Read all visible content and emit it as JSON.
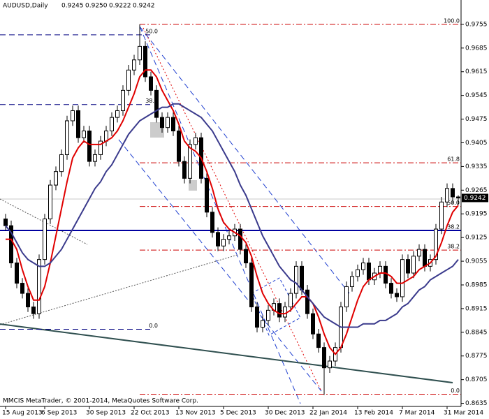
{
  "chart_data": {
    "type": "candlestick",
    "title": "AUDUSD,Daily",
    "ohlc_labels": [
      "0.9245",
      "0.9250",
      "0.9222",
      "0.9242"
    ],
    "footer": "MMCIS MetaTrader, © 2001-2014, MetaQuotes Software Corp.",
    "ylim": [
      0.863,
      0.9827
    ],
    "yticks": [
      0.9755,
      0.9685,
      0.9615,
      0.9545,
      0.9475,
      0.9405,
      0.9335,
      0.9265,
      0.9195,
      0.9125,
      0.9055,
      0.8985,
      0.8915,
      0.8845,
      0.8775,
      0.8705,
      0.8635
    ],
    "xticks": [
      {
        "value": 0,
        "label": "15 Aug 2013"
      },
      {
        "value": 7,
        "label": "6 Sep 2013"
      },
      {
        "value": 15,
        "label": "30 Sep 2013"
      },
      {
        "value": 23,
        "label": "22 Oct 2013"
      },
      {
        "value": 31,
        "label": "13 Nov 2013"
      },
      {
        "value": 39,
        "label": "5 Dec 2013"
      },
      {
        "value": 47,
        "label": "30 Dec 2013"
      },
      {
        "value": 55,
        "label": "22 Jan 2014"
      },
      {
        "value": 63,
        "label": "13 Feb 2014"
      },
      {
        "value": 71,
        "label": "7 Mar 2014"
      },
      {
        "value": 79,
        "label": "31 Mar 2014"
      }
    ],
    "candles": [
      [
        0.918,
        0.9195,
        0.9145,
        0.916
      ],
      [
        0.916,
        0.9175,
        0.9035,
        0.905
      ],
      [
        0.905,
        0.9065,
        0.8975,
        0.899
      ],
      [
        0.899,
        0.9005,
        0.8945,
        0.896
      ],
      [
        0.896,
        0.8975,
        0.8905,
        0.892
      ],
      [
        0.892,
        0.8935,
        0.8885,
        0.89
      ],
      [
        0.89,
        0.9075,
        0.8885,
        0.906
      ],
      [
        0.906,
        0.9195,
        0.9045,
        0.918
      ],
      [
        0.918,
        0.9295,
        0.9165,
        0.928
      ],
      [
        0.928,
        0.9335,
        0.9265,
        0.932
      ],
      [
        0.932,
        0.9385,
        0.9305,
        0.937
      ],
      [
        0.937,
        0.9485,
        0.9355,
        0.947
      ],
      [
        0.947,
        0.9515,
        0.9455,
        0.95
      ],
      [
        0.95,
        0.9515,
        0.9405,
        0.942
      ],
      [
        0.942,
        0.9455,
        0.9405,
        0.944
      ],
      [
        0.944,
        0.9455,
        0.9335,
        0.935
      ],
      [
        0.935,
        0.9385,
        0.9335,
        0.937
      ],
      [
        0.937,
        0.9425,
        0.9355,
        0.941
      ],
      [
        0.941,
        0.9455,
        0.9395,
        0.944
      ],
      [
        0.944,
        0.9495,
        0.9425,
        0.948
      ],
      [
        0.948,
        0.9515,
        0.9465,
        0.95
      ],
      [
        0.95,
        0.9575,
        0.9485,
        0.956
      ],
      [
        0.956,
        0.9635,
        0.9545,
        0.962
      ],
      [
        0.962,
        0.9665,
        0.9605,
        0.965
      ],
      [
        0.965,
        0.9755,
        0.9635,
        0.969
      ],
      [
        0.969,
        0.9705,
        0.9585,
        0.96
      ],
      [
        0.96,
        0.9615,
        0.9545,
        0.956
      ],
      [
        0.956,
        0.9575,
        0.9465,
        0.948
      ],
      [
        0.948,
        0.9495,
        0.9435,
        0.945
      ],
      [
        0.945,
        0.9495,
        0.9435,
        0.948
      ],
      [
        0.948,
        0.9495,
        0.9425,
        0.944
      ],
      [
        0.944,
        0.9455,
        0.9335,
        0.935
      ],
      [
        0.935,
        0.9365,
        0.9285,
        0.93
      ],
      [
        0.93,
        0.9415,
        0.9285,
        0.94
      ],
      [
        0.94,
        0.9435,
        0.9385,
        0.942
      ],
      [
        0.942,
        0.9435,
        0.9285,
        0.93
      ],
      [
        0.93,
        0.9315,
        0.9185,
        0.92
      ],
      [
        0.92,
        0.9215,
        0.9125,
        0.914
      ],
      [
        0.914,
        0.9155,
        0.9085,
        0.91
      ],
      [
        0.91,
        0.9135,
        0.9085,
        0.912
      ],
      [
        0.912,
        0.9145,
        0.9105,
        0.913
      ],
      [
        0.913,
        0.9165,
        0.9115,
        0.915
      ],
      [
        0.915,
        0.9165,
        0.9075,
        0.909
      ],
      [
        0.909,
        0.9105,
        0.9035,
        0.905
      ],
      [
        0.905,
        0.9065,
        0.8905,
        0.892
      ],
      [
        0.892,
        0.8935,
        0.8845,
        0.886
      ],
      [
        0.886,
        0.8895,
        0.8845,
        0.888
      ],
      [
        0.888,
        0.8925,
        0.8865,
        0.891
      ],
      [
        0.891,
        0.8945,
        0.8895,
        0.893
      ],
      [
        0.893,
        0.8945,
        0.8875,
        0.889
      ],
      [
        0.889,
        0.8935,
        0.8875,
        0.892
      ],
      [
        0.892,
        0.8975,
        0.8905,
        0.896
      ],
      [
        0.896,
        0.9055,
        0.8945,
        0.904
      ],
      [
        0.904,
        0.9055,
        0.8955,
        0.897
      ],
      [
        0.897,
        0.8985,
        0.8885,
        0.89
      ],
      [
        0.89,
        0.8915,
        0.8825,
        0.884
      ],
      [
        0.884,
        0.8855,
        0.8785,
        0.88
      ],
      [
        0.88,
        0.8815,
        0.866,
        0.874
      ],
      [
        0.874,
        0.8775,
        0.8725,
        0.876
      ],
      [
        0.876,
        0.8815,
        0.8745,
        0.88
      ],
      [
        0.88,
        0.8935,
        0.8785,
        0.892
      ],
      [
        0.892,
        0.8995,
        0.8905,
        0.898
      ],
      [
        0.898,
        0.9025,
        0.8965,
        0.901
      ],
      [
        0.901,
        0.9045,
        0.8995,
        0.903
      ],
      [
        0.903,
        0.9065,
        0.9015,
        0.905
      ],
      [
        0.905,
        0.9065,
        0.8985,
        0.9
      ],
      [
        0.9,
        0.9035,
        0.8985,
        0.902
      ],
      [
        0.902,
        0.9055,
        0.9005,
        0.904
      ],
      [
        0.904,
        0.9055,
        0.8975,
        0.899
      ],
      [
        0.899,
        0.9005,
        0.8945,
        0.896
      ],
      [
        0.896,
        0.8975,
        0.8935,
        0.895
      ],
      [
        0.895,
        0.9075,
        0.8935,
        0.906
      ],
      [
        0.906,
        0.9075,
        0.9005,
        0.902
      ],
      [
        0.902,
        0.9085,
        0.9005,
        0.907
      ],
      [
        0.907,
        0.9105,
        0.9055,
        0.909
      ],
      [
        0.909,
        0.9105,
        0.9025,
        0.904
      ],
      [
        0.904,
        0.9075,
        0.9025,
        0.906
      ],
      [
        0.906,
        0.9165,
        0.9045,
        0.915
      ],
      [
        0.915,
        0.9245,
        0.9135,
        0.923
      ],
      [
        0.923,
        0.9285,
        0.9215,
        0.927
      ],
      [
        0.927,
        0.9285,
        0.9225,
        0.9245
      ],
      [
        0.9245,
        0.925,
        0.9222,
        0.9242
      ]
    ],
    "series": [
      {
        "color": "#e00000",
        "values": [
          0.912,
          0.912,
          0.909,
          0.903,
          0.898,
          0.894,
          0.894,
          0.898,
          0.905,
          0.913,
          0.921,
          0.929,
          0.936,
          0.939,
          0.941,
          0.94,
          0.94,
          0.94,
          0.941,
          0.942,
          0.944,
          0.947,
          0.951,
          0.955,
          0.96,
          0.962,
          0.962,
          0.96,
          0.956,
          0.953,
          0.95,
          0.946,
          0.941,
          0.939,
          0.938,
          0.936,
          0.932,
          0.927,
          0.921,
          0.917,
          0.915,
          0.914,
          0.913,
          0.911,
          0.907,
          0.901,
          0.896,
          0.893,
          0.891,
          0.89,
          0.89,
          0.891,
          0.893,
          0.895,
          0.895,
          0.893,
          0.889,
          0.884,
          0.88,
          0.878,
          0.88,
          0.884,
          0.889,
          0.894,
          0.898,
          0.9,
          0.901,
          0.902,
          0.902,
          0.901,
          0.899,
          0.899,
          0.9,
          0.901,
          0.903,
          0.904,
          0.905,
          0.907,
          0.911,
          0.916,
          0.92,
          0.922
        ]
      },
      {
        "color": "#3a3a8c",
        "values": [
          0.916,
          0.914,
          0.911,
          0.908,
          0.906,
          0.905,
          0.904,
          0.904,
          0.905,
          0.907,
          0.909,
          0.912,
          0.915,
          0.918,
          0.921,
          0.924,
          0.927,
          0.929,
          0.932,
          0.934,
          0.937,
          0.94,
          0.943,
          0.945,
          0.947,
          0.948,
          0.949,
          0.95,
          0.951,
          0.951,
          0.952,
          0.952,
          0.951,
          0.95,
          0.949,
          0.948,
          0.946,
          0.944,
          0.941,
          0.938,
          0.935,
          0.932,
          0.928,
          0.925,
          0.921,
          0.917,
          0.913,
          0.91,
          0.907,
          0.904,
          0.902,
          0.9,
          0.899,
          0.897,
          0.895,
          0.893,
          0.891,
          0.889,
          0.888,
          0.887,
          0.886,
          0.886,
          0.886,
          0.886,
          0.887,
          0.887,
          0.887,
          0.888,
          0.888,
          0.889,
          0.89,
          0.892,
          0.893,
          0.895,
          0.897,
          0.898,
          0.9,
          0.901,
          0.902,
          0.903,
          0.904,
          0.906
        ]
      }
    ],
    "levels": [
      {
        "color": "#cc0000",
        "levels": [
          {
            "value": 0.9755,
            "label": "100.0"
          },
          {
            "value": 0.9346,
            "label": "61.8"
          },
          {
            "value": 0.9217,
            "label": "50.0"
          },
          {
            "value": 0.9088,
            "label": "38.2"
          },
          {
            "value": 0.8662,
            "label": "0.0"
          }
        ]
      },
      {
        "color": "#000080",
        "levels": [
          {
            "value": 0.9724,
            "label": "50.0"
          },
          {
            "value": 0.9518,
            "label": "38.2"
          },
          {
            "value": 0.8854,
            "label": "0.0"
          }
        ]
      },
      {
        "color": "#0000a0",
        "levels": [
          {
            "value": 0.9146,
            "label": "38.2"
          }
        ]
      }
    ]
  }
}
